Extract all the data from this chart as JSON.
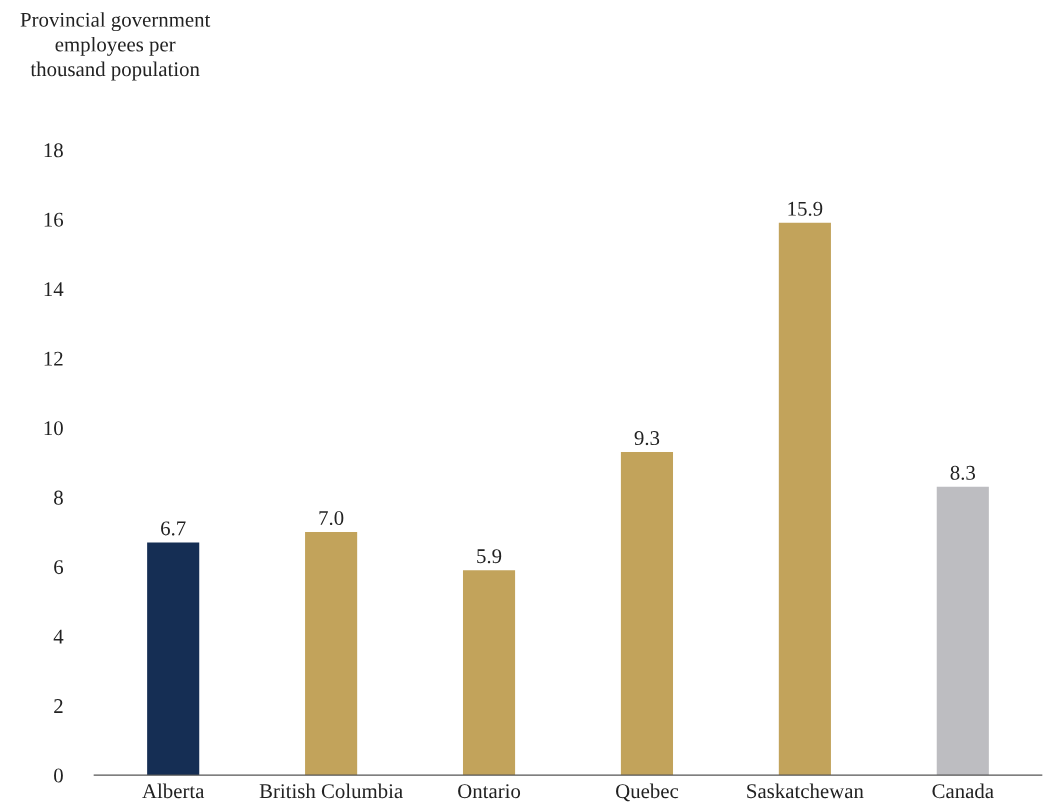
{
  "chart_data": {
    "type": "bar",
    "ylabel": "Provincial government\nemployees per\nthousand population",
    "categories": [
      "Alberta",
      "British Columbia",
      "Ontario",
      "Quebec",
      "Saskatchewan",
      "Canada"
    ],
    "values": [
      6.7,
      7.0,
      5.9,
      9.3,
      15.9,
      8.3
    ],
    "colors": [
      "#152e54",
      "#c2a35b",
      "#c2a35b",
      "#c2a35b",
      "#c2a35b",
      "#bdbdc1"
    ],
    "value_labels": [
      "6.7",
      "7.0",
      "5.9",
      "9.3",
      "15.9",
      "8.3"
    ],
    "ylim": [
      0,
      18
    ],
    "yticks": [
      0,
      2,
      4,
      6,
      8,
      10,
      12,
      14,
      16,
      18
    ],
    "grid": false,
    "legend": false
  }
}
